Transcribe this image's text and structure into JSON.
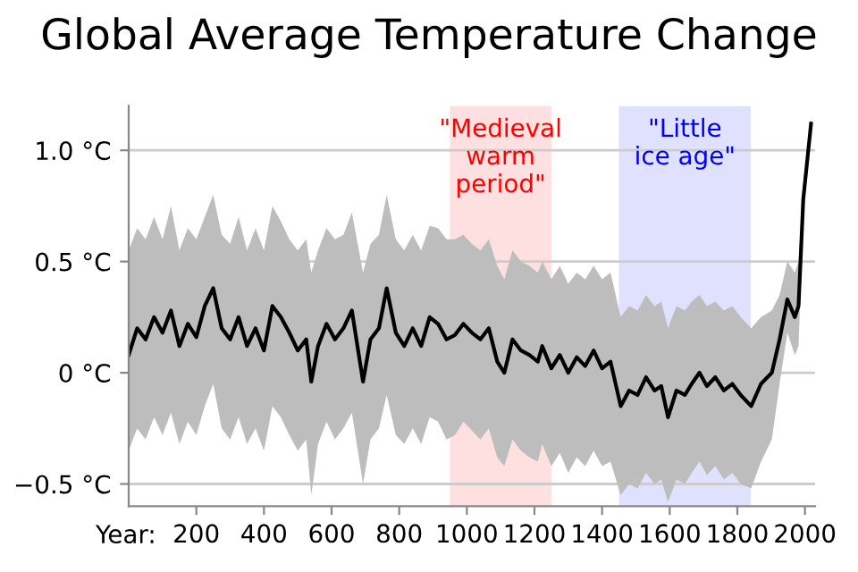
{
  "chart_data": {
    "type": "line",
    "title": "Global Average Temperature Change",
    "xlabel": "Year:",
    "x": [
      0,
      25,
      50,
      75,
      100,
      125,
      150,
      175,
      200,
      225,
      250,
      275,
      300,
      325,
      350,
      375,
      400,
      425,
      450,
      475,
      500,
      525,
      540,
      560,
      585,
      610,
      635,
      660,
      693,
      715,
      740,
      763,
      790,
      815,
      840,
      865,
      890,
      915,
      940,
      965,
      990,
      1015,
      1040,
      1065,
      1090,
      1111,
      1135,
      1160,
      1185,
      1210,
      1223,
      1250,
      1275,
      1300,
      1325,
      1350,
      1375,
      1400,
      1425,
      1455,
      1480,
      1505,
      1530,
      1555,
      1575,
      1595,
      1620,
      1645,
      1665,
      1688,
      1710,
      1735,
      1760,
      1785,
      1810,
      1841,
      1870,
      1902,
      1925,
      1948,
      1970,
      1981,
      1995,
      2018
    ],
    "series": [
      {
        "color": "#000000",
        "values": [
          0.08,
          0.2,
          0.15,
          0.25,
          0.18,
          0.28,
          0.12,
          0.22,
          0.16,
          0.3,
          0.38,
          0.2,
          0.15,
          0.25,
          0.12,
          0.2,
          0.1,
          0.3,
          0.25,
          0.18,
          0.1,
          0.15,
          -0.04,
          0.12,
          0.22,
          0.15,
          0.2,
          0.28,
          -0.04,
          0.15,
          0.2,
          0.38,
          0.18,
          0.12,
          0.2,
          0.12,
          0.25,
          0.22,
          0.15,
          0.17,
          0.22,
          0.18,
          0.15,
          0.2,
          0.05,
          0.0,
          0.15,
          0.1,
          0.08,
          0.05,
          0.12,
          0.02,
          0.08,
          0.0,
          0.07,
          0.03,
          0.1,
          0.02,
          0.05,
          -0.15,
          -0.08,
          -0.1,
          -0.02,
          -0.08,
          -0.06,
          -0.2,
          -0.08,
          -0.1,
          -0.05,
          0.0,
          -0.06,
          -0.02,
          -0.08,
          -0.05,
          -0.1,
          -0.15,
          -0.05,
          0.0,
          0.15,
          0.33,
          0.25,
          0.3,
          0.78,
          1.12
        ],
        "upper": [
          0.55,
          0.65,
          0.6,
          0.7,
          0.6,
          0.75,
          0.55,
          0.65,
          0.6,
          0.7,
          0.8,
          0.62,
          0.58,
          0.7,
          0.55,
          0.65,
          0.55,
          0.75,
          0.68,
          0.6,
          0.55,
          0.6,
          0.45,
          0.55,
          0.65,
          0.6,
          0.62,
          0.72,
          0.45,
          0.58,
          0.62,
          0.8,
          0.6,
          0.55,
          0.62,
          0.55,
          0.66,
          0.65,
          0.6,
          0.6,
          0.62,
          0.58,
          0.55,
          0.6,
          0.48,
          0.42,
          0.55,
          0.5,
          0.48,
          0.45,
          0.5,
          0.42,
          0.48,
          0.4,
          0.45,
          0.42,
          0.48,
          0.42,
          0.45,
          0.25,
          0.3,
          0.28,
          0.35,
          0.3,
          0.32,
          0.2,
          0.3,
          0.28,
          0.32,
          0.35,
          0.3,
          0.32,
          0.28,
          0.3,
          0.25,
          0.2,
          0.25,
          0.28,
          0.35,
          0.5,
          0.45,
          0.5,
          0.85,
          1.15
        ],
        "lower": [
          -0.35,
          -0.25,
          -0.3,
          -0.2,
          -0.28,
          -0.18,
          -0.32,
          -0.22,
          -0.28,
          -0.15,
          -0.05,
          -0.25,
          -0.3,
          -0.2,
          -0.32,
          -0.25,
          -0.35,
          -0.15,
          -0.2,
          -0.28,
          -0.35,
          -0.3,
          -0.55,
          -0.32,
          -0.22,
          -0.3,
          -0.25,
          -0.18,
          -0.5,
          -0.3,
          -0.25,
          -0.1,
          -0.28,
          -0.32,
          -0.25,
          -0.32,
          -0.2,
          -0.22,
          -0.3,
          -0.28,
          -0.22,
          -0.26,
          -0.3,
          -0.25,
          -0.38,
          -0.42,
          -0.3,
          -0.35,
          -0.38,
          -0.4,
          -0.32,
          -0.42,
          -0.36,
          -0.45,
          -0.38,
          -0.42,
          -0.35,
          -0.42,
          -0.4,
          -0.55,
          -0.5,
          -0.52,
          -0.45,
          -0.5,
          -0.48,
          -0.58,
          -0.48,
          -0.5,
          -0.45,
          -0.4,
          -0.46,
          -0.42,
          -0.48,
          -0.45,
          -0.5,
          -0.52,
          -0.4,
          -0.3,
          -0.05,
          0.18,
          0.08,
          0.12,
          0.7,
          1.1
        ]
      }
    ],
    "xlim": [
      0,
      2030
    ],
    "xticks": [
      200,
      400,
      600,
      800,
      1000,
      1200,
      1400,
      1600,
      1800,
      2000
    ],
    "ylim": [
      -0.6,
      1.2
    ],
    "yticks": [
      {
        "value": 1.0,
        "label": "1.0 °C"
      },
      {
        "value": 0.5,
        "label": "0.5 °C"
      },
      {
        "value": 0,
        "label": "0 °C"
      },
      {
        "value": -0.5,
        "label": "−0.5 °C"
      }
    ],
    "bands": [
      {
        "axis": "x",
        "from": 950,
        "to": 1250,
        "label": "\"Medieval\nwarm\nperiod\"",
        "color": "#ffe0e0"
      },
      {
        "axis": "x",
        "from": 1450,
        "to": 1840,
        "label": "\"Little\nice age\"",
        "color": "#e0e0ff"
      }
    ],
    "grid": "y",
    "marker": "none",
    "line_style": "solid"
  }
}
